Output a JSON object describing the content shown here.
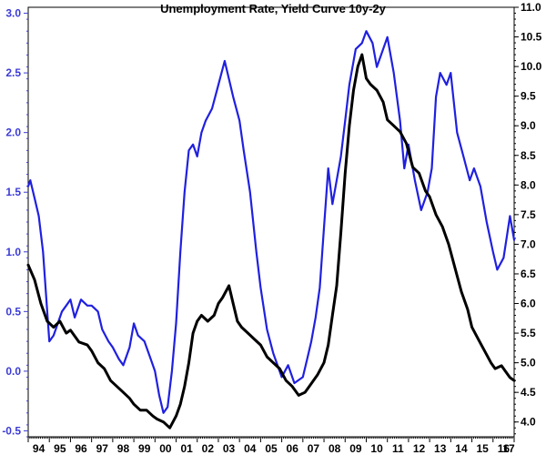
{
  "chart_data": {
    "type": "line",
    "title": "Unemployment Rate, Yield Curve 10y-2y",
    "x_tick_labels": [
      "94",
      "95",
      "96",
      "97",
      "98",
      "99",
      "00",
      "01",
      "02",
      "03",
      "04",
      "05",
      "06",
      "07",
      "08",
      "09",
      "10",
      "11",
      "12",
      "13",
      "14",
      "15",
      "16",
      "17"
    ],
    "xlim": [
      1994,
      2017
    ],
    "left_axis": {
      "ylim": [
        -0.55,
        3.05
      ],
      "ticks": [
        -0.5,
        0.0,
        0.5,
        1.0,
        1.5,
        2.0,
        2.5,
        3.0
      ],
      "tick_labels": [
        "-0.5",
        "0.0",
        "0.5",
        "1.0",
        "1.5",
        "2.0",
        "2.5",
        "3.0"
      ],
      "color": "#3b3bd6"
    },
    "right_axis": {
      "ylim": [
        3.75,
        11.0
      ],
      "ticks": [
        4.0,
        4.5,
        5.0,
        5.5,
        6.0,
        6.5,
        7.0,
        7.5,
        8.0,
        8.5,
        9.0,
        9.5,
        10.0,
        10.5,
        11.0
      ],
      "tick_labels": [
        "4.0",
        "4.5",
        "5.0",
        "5.5",
        "6.0",
        "6.5",
        "7.0",
        "7.5",
        "8.0",
        "8.5",
        "9.0",
        "9.5",
        "10.0",
        "10.5",
        "11.0"
      ],
      "color": "#000000"
    },
    "grid": false,
    "legend": "none",
    "series": [
      {
        "axis": "left",
        "color": "#2020e0",
        "x": [
          1994.0,
          1994.1,
          1994.3,
          1994.5,
          1994.7,
          1994.9,
          1995.0,
          1995.2,
          1995.4,
          1995.6,
          1995.8,
          1996.0,
          1996.2,
          1996.5,
          1996.8,
          1997.0,
          1997.3,
          1997.5,
          1997.8,
          1998.0,
          1998.3,
          1998.5,
          1998.8,
          1999.0,
          1999.2,
          1999.5,
          1999.8,
          2000.0,
          2000.2,
          2000.4,
          2000.6,
          2000.8,
          2001.0,
          2001.2,
          2001.4,
          2001.6,
          2001.8,
          2002.0,
          2002.2,
          2002.4,
          2002.7,
          2003.0,
          2003.3,
          2003.5,
          2003.7,
          2004.0,
          2004.2,
          2004.5,
          2004.8,
          2005.0,
          2005.3,
          2005.6,
          2006.0,
          2006.3,
          2006.6,
          2007.0,
          2007.2,
          2007.4,
          2007.6,
          2007.8,
          2008.0,
          2008.2,
          2008.4,
          2008.6,
          2008.8,
          2009.0,
          2009.2,
          2009.5,
          2009.8,
          2010.0,
          2010.3,
          2010.5,
          2010.8,
          2011.0,
          2011.3,
          2011.6,
          2011.8,
          2012.0,
          2012.3,
          2012.6,
          2012.9,
          2013.1,
          2013.3,
          2013.5,
          2013.8,
          2014.0,
          2014.3,
          2014.6,
          2014.9,
          2015.1,
          2015.4,
          2015.7,
          2016.0,
          2016.2,
          2016.5,
          2016.8,
          2017.0
        ],
        "y": [
          1.55,
          1.6,
          1.45,
          1.3,
          1.0,
          0.5,
          0.25,
          0.3,
          0.4,
          0.5,
          0.55,
          0.6,
          0.45,
          0.6,
          0.55,
          0.55,
          0.5,
          0.35,
          0.25,
          0.2,
          0.1,
          0.05,
          0.2,
          0.4,
          0.3,
          0.25,
          0.1,
          0.0,
          -0.2,
          -0.35,
          -0.3,
          0.0,
          0.4,
          1.0,
          1.5,
          1.85,
          1.9,
          1.8,
          2.0,
          2.1,
          2.2,
          2.4,
          2.6,
          2.45,
          2.3,
          2.1,
          1.85,
          1.5,
          1.0,
          0.7,
          0.35,
          0.15,
          -0.05,
          0.05,
          -0.1,
          -0.05,
          0.1,
          0.25,
          0.45,
          0.7,
          1.2,
          1.7,
          1.4,
          1.6,
          1.8,
          2.1,
          2.4,
          2.7,
          2.75,
          2.85,
          2.75,
          2.55,
          2.7,
          2.8,
          2.5,
          2.1,
          1.7,
          1.9,
          1.6,
          1.35,
          1.5,
          1.7,
          2.3,
          2.5,
          2.4,
          2.5,
          2.0,
          1.8,
          1.6,
          1.7,
          1.55,
          1.25,
          1.0,
          0.85,
          0.95,
          1.3,
          1.1
        ]
      },
      {
        "axis": "right",
        "color": "#000000",
        "x": [
          1994.0,
          1994.3,
          1994.6,
          1994.9,
          1995.2,
          1995.5,
          1995.8,
          1996.0,
          1996.4,
          1996.8,
          1997.0,
          1997.3,
          1997.6,
          1997.9,
          1998.2,
          1998.5,
          1998.8,
          1999.0,
          1999.3,
          1999.6,
          1999.9,
          2000.1,
          2000.4,
          2000.7,
          2001.0,
          2001.2,
          2001.4,
          2001.6,
          2001.8,
          2002.0,
          2002.2,
          2002.5,
          2002.8,
          2003.0,
          2003.2,
          2003.5,
          2003.7,
          2003.9,
          2004.1,
          2004.4,
          2004.7,
          2005.0,
          2005.3,
          2005.6,
          2005.9,
          2006.2,
          2006.5,
          2006.8,
          2007.1,
          2007.3,
          2007.5,
          2007.7,
          2008.0,
          2008.2,
          2008.4,
          2008.6,
          2008.8,
          2009.0,
          2009.2,
          2009.4,
          2009.6,
          2009.8,
          2010.0,
          2010.2,
          2010.5,
          2010.8,
          2011.0,
          2011.3,
          2011.6,
          2011.9,
          2012.2,
          2012.5,
          2012.8,
          2013.0,
          2013.3,
          2013.6,
          2013.9,
          2014.2,
          2014.5,
          2014.8,
          2015.0,
          2015.3,
          2015.6,
          2015.9,
          2016.1,
          2016.4,
          2016.6,
          2016.8,
          2017.0
        ],
        "y": [
          6.65,
          6.4,
          6.0,
          5.7,
          5.6,
          5.7,
          5.5,
          5.55,
          5.35,
          5.3,
          5.2,
          5.0,
          4.9,
          4.7,
          4.6,
          4.5,
          4.4,
          4.3,
          4.2,
          4.2,
          4.1,
          4.05,
          4.0,
          3.9,
          4.1,
          4.3,
          4.6,
          5.0,
          5.5,
          5.7,
          5.8,
          5.7,
          5.8,
          6.0,
          6.1,
          6.3,
          6.0,
          5.7,
          5.6,
          5.5,
          5.4,
          5.3,
          5.1,
          5.0,
          4.9,
          4.7,
          4.6,
          4.45,
          4.5,
          4.6,
          4.7,
          4.8,
          5.0,
          5.3,
          5.8,
          6.3,
          7.2,
          8.2,
          9.0,
          9.6,
          10.0,
          10.2,
          9.8,
          9.7,
          9.6,
          9.4,
          9.1,
          9.0,
          8.9,
          8.7,
          8.3,
          8.2,
          7.9,
          7.8,
          7.5,
          7.3,
          7.0,
          6.6,
          6.2,
          5.9,
          5.6,
          5.4,
          5.2,
          5.0,
          4.9,
          4.95,
          4.85,
          4.75,
          4.7
        ]
      }
    ]
  }
}
